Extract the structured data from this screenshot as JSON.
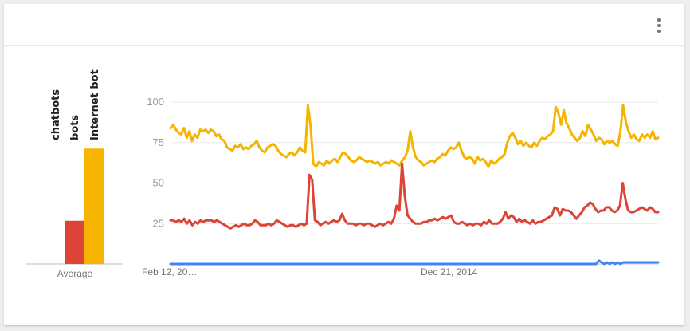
{
  "menu": {
    "icon": "more-vert-icon"
  },
  "average_panel": {
    "label": "Average",
    "terms": [
      "chatbots",
      "bots",
      "Internet bot"
    ]
  },
  "colors": {
    "chatbots": "#4285f4",
    "bots": "#db4437",
    "Internet bot": "#f4b400",
    "grid": "#e8e8e8",
    "axis_text": "#999999"
  },
  "chart_data": [
    {
      "type": "bar",
      "title": "",
      "xlabel": "Average",
      "ylabel": "",
      "ylim": [
        0,
        100
      ],
      "categories": [
        "chatbots",
        "bots",
        "Internet bot"
      ],
      "values": [
        0,
        27,
        72
      ]
    },
    {
      "type": "line",
      "title": "",
      "xlabel": "",
      "ylabel": "",
      "ylim": [
        0,
        100
      ],
      "y_ticks": [
        25,
        50,
        75,
        100
      ],
      "x_tick_labels": [
        "Feb 12, 20…",
        "Dec 21, 2014"
      ],
      "grid": true,
      "series": [
        {
          "name": "Internet bot",
          "values": [
            84,
            86,
            83,
            81,
            80,
            84,
            78,
            82,
            76,
            80,
            78,
            83,
            82,
            83,
            81,
            83,
            82,
            79,
            80,
            77,
            76,
            72,
            71,
            70,
            73,
            72,
            74,
            71,
            72,
            71,
            73,
            74,
            76,
            72,
            70,
            69,
            72,
            73,
            74,
            73,
            70,
            68,
            67,
            66,
            68,
            69,
            67,
            69,
            72,
            70,
            69,
            98,
            85,
            62,
            60,
            63,
            62,
            61,
            64,
            62,
            64,
            65,
            63,
            66,
            69,
            68,
            66,
            64,
            63,
            64,
            66,
            65,
            64,
            63,
            64,
            63,
            62,
            63,
            61,
            62,
            63,
            62,
            64,
            63,
            62,
            61,
            64,
            66,
            70,
            82,
            72,
            66,
            64,
            63,
            61,
            62,
            63,
            64,
            63,
            65,
            66,
            68,
            67,
            70,
            72,
            71,
            72,
            75,
            70,
            66,
            65,
            66,
            65,
            62,
            66,
            64,
            65,
            63,
            60,
            64,
            62,
            63,
            65,
            66,
            68,
            75,
            79,
            81,
            78,
            74,
            76,
            73,
            75,
            73,
            72,
            75,
            73,
            76,
            78,
            77,
            79,
            80,
            82,
            97,
            93,
            86,
            95,
            87,
            84,
            80,
            78,
            76,
            78,
            82,
            79,
            86,
            83,
            80,
            76,
            78,
            77,
            74,
            76,
            75,
            76,
            74,
            73,
            82,
            98,
            88,
            82,
            78,
            80,
            77,
            76,
            80,
            78,
            80,
            78,
            82,
            77,
            78
          ]
        },
        {
          "name": "bots",
          "values": [
            27,
            27,
            26,
            27,
            26,
            28,
            25,
            27,
            24,
            26,
            25,
            27,
            26,
            27,
            27,
            27,
            26,
            27,
            26,
            25,
            24,
            23,
            22,
            23,
            24,
            23,
            24,
            25,
            24,
            24,
            25,
            27,
            26,
            24,
            24,
            24,
            25,
            24,
            25,
            27,
            26,
            25,
            24,
            23,
            24,
            24,
            23,
            24,
            25,
            24,
            25,
            55,
            52,
            27,
            26,
            24,
            25,
            26,
            25,
            26,
            27,
            26,
            27,
            31,
            27,
            25,
            25,
            25,
            24,
            25,
            25,
            24,
            25,
            25,
            24,
            23,
            24,
            25,
            24,
            25,
            26,
            25,
            28,
            36,
            33,
            62,
            42,
            30,
            28,
            26,
            25,
            25,
            25,
            26,
            26,
            27,
            27,
            28,
            27,
            28,
            29,
            28,
            29,
            30,
            26,
            25,
            25,
            26,
            25,
            24,
            25,
            24,
            25,
            25,
            24,
            26,
            25,
            27,
            25,
            25,
            25,
            26,
            28,
            32,
            28,
            30,
            29,
            26,
            28,
            26,
            27,
            26,
            25,
            27,
            25,
            26,
            26,
            27,
            28,
            29,
            30,
            35,
            34,
            30,
            34,
            33,
            33,
            32,
            30,
            28,
            30,
            32,
            35,
            36,
            38,
            37,
            34,
            32,
            33,
            33,
            35,
            35,
            33,
            32,
            33,
            36,
            50,
            40,
            33,
            32,
            32,
            33,
            34,
            35,
            34,
            33,
            35,
            34,
            32,
            32
          ]
        },
        {
          "name": "chatbots",
          "values": [
            0,
            0,
            0,
            0,
            0,
            0,
            0,
            0,
            0,
            0,
            0,
            0,
            0,
            0,
            0,
            0,
            0,
            0,
            0,
            0,
            0,
            0,
            0,
            0,
            0,
            0,
            0,
            0,
            0,
            0,
            0,
            0,
            0,
            0,
            0,
            0,
            0,
            0,
            0,
            0,
            0,
            0,
            0,
            0,
            0,
            0,
            0,
            0,
            0,
            0,
            0,
            0,
            0,
            0,
            0,
            0,
            0,
            0,
            0,
            0,
            0,
            0,
            0,
            0,
            0,
            0,
            0,
            0,
            0,
            0,
            0,
            0,
            0,
            0,
            0,
            0,
            0,
            0,
            0,
            0,
            0,
            0,
            0,
            0,
            0,
            0,
            0,
            0,
            0,
            0,
            0,
            0,
            0,
            0,
            0,
            0,
            0,
            0,
            0,
            0,
            0,
            0,
            0,
            0,
            0,
            0,
            0,
            0,
            0,
            0,
            0,
            0,
            0,
            0,
            0,
            0,
            0,
            0,
            0,
            0,
            0,
            0,
            0,
            0,
            0,
            0,
            0,
            0,
            0,
            0,
            0,
            0,
            0,
            0,
            0,
            0,
            0,
            0,
            0,
            0,
            0,
            0,
            0,
            0,
            0,
            0,
            0,
            0,
            0,
            0,
            0,
            0,
            0,
            0,
            0,
            0,
            0,
            0,
            0,
            2,
            1,
            0,
            1,
            0,
            1,
            0,
            1,
            0,
            1,
            1,
            1,
            1,
            1,
            1,
            1,
            1,
            1,
            1,
            1,
            1,
            1,
            1
          ]
        }
      ]
    }
  ]
}
